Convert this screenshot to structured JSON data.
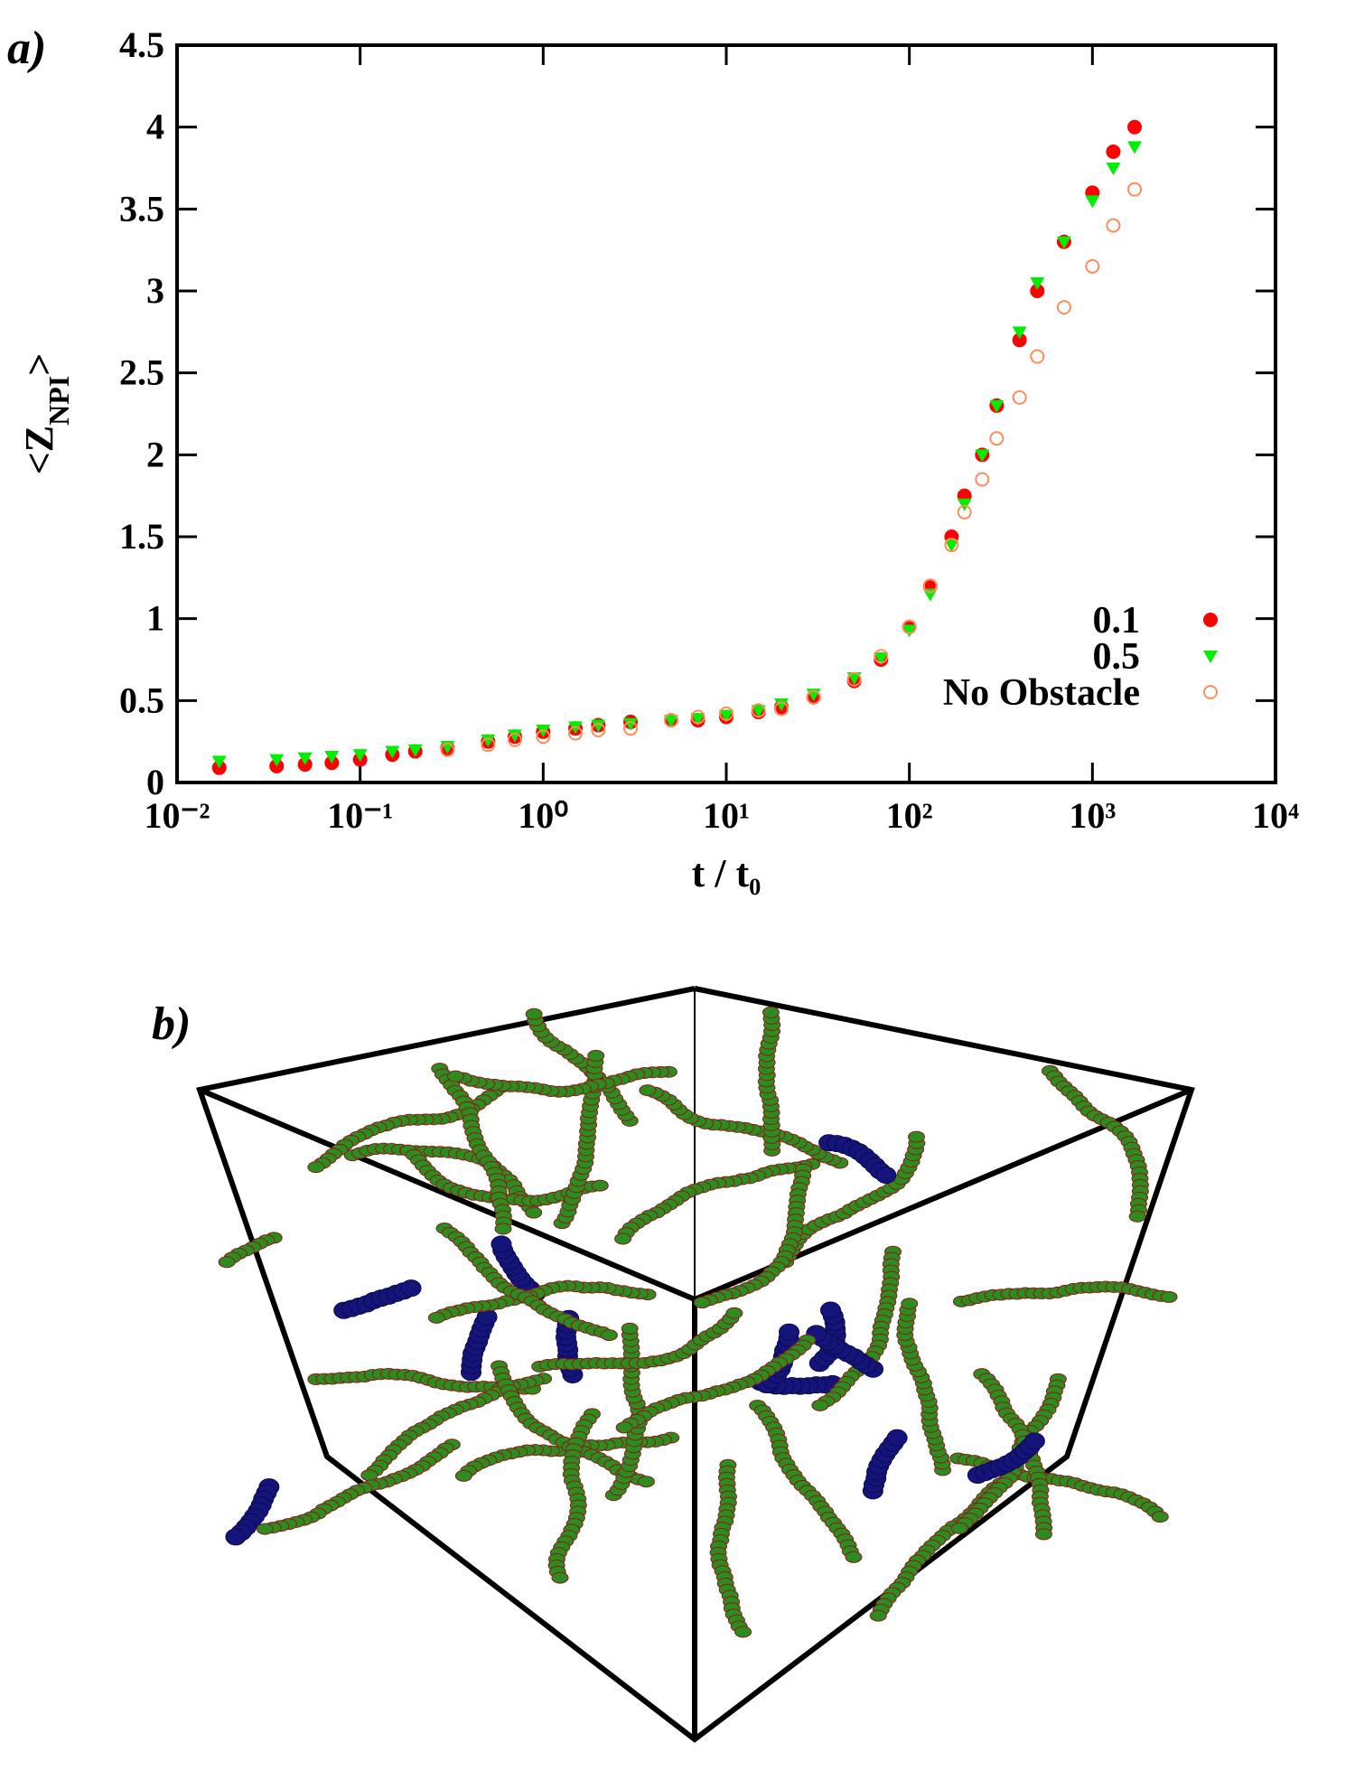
{
  "chart_data": {
    "type": "scatter",
    "panel_label": "a)",
    "xlabel": "t / t₀",
    "ylabel": [
      "<Z",
      "NPI",
      ">"
    ],
    "xscale": "log",
    "xlim": [
      0.01,
      10000
    ],
    "xticks": [
      {
        "value": 0.01,
        "label": "10⁻²"
      },
      {
        "value": 0.1,
        "label": "10⁻¹"
      },
      {
        "value": 1,
        "label": "10⁰"
      },
      {
        "value": 10,
        "label": "10¹"
      },
      {
        "value": 100,
        "label": "10²"
      },
      {
        "value": 1000,
        "label": "10³"
      },
      {
        "value": 10000,
        "label": "10⁴"
      }
    ],
    "ylim": [
      0,
      4.5
    ],
    "yticks": [
      0,
      0.5,
      1,
      1.5,
      2,
      2.5,
      3,
      3.5,
      4,
      4.5
    ],
    "legend": "lower right",
    "series": [
      {
        "name": "0.1",
        "color": "#ff0000",
        "marker": "circle",
        "x": [
          0.017,
          0.035,
          0.05,
          0.07,
          0.1,
          0.15,
          0.2,
          0.3,
          0.5,
          0.7,
          1,
          1.5,
          2,
          3,
          5,
          7,
          10,
          15,
          20,
          30,
          50,
          70,
          100,
          130,
          170,
          200,
          250,
          300,
          400,
          500,
          700,
          1000,
          1300,
          1700
        ],
        "values": [
          0.09,
          0.1,
          0.11,
          0.12,
          0.14,
          0.17,
          0.19,
          0.21,
          0.25,
          0.28,
          0.31,
          0.33,
          0.35,
          0.37,
          0.38,
          0.38,
          0.4,
          0.43,
          0.46,
          0.52,
          0.62,
          0.75,
          0.95,
          1.2,
          1.5,
          1.75,
          2.0,
          2.3,
          2.7,
          3.0,
          3.3,
          3.6,
          3.85,
          4.0
        ]
      },
      {
        "name": "0.5",
        "color": "#00ee00",
        "marker": "triangle",
        "x": [
          0.017,
          0.035,
          0.05,
          0.07,
          0.1,
          0.15,
          0.2,
          0.3,
          0.5,
          0.7,
          1,
          1.5,
          2,
          3,
          5,
          7,
          10,
          15,
          20,
          30,
          50,
          70,
          100,
          130,
          170,
          200,
          250,
          300,
          400,
          500,
          700,
          1000,
          1300,
          1700
        ],
        "values": [
          0.13,
          0.14,
          0.15,
          0.16,
          0.17,
          0.19,
          0.2,
          0.22,
          0.26,
          0.29,
          0.32,
          0.34,
          0.35,
          0.36,
          0.38,
          0.39,
          0.41,
          0.44,
          0.48,
          0.54,
          0.64,
          0.76,
          0.93,
          1.15,
          1.45,
          1.7,
          2.0,
          2.3,
          2.75,
          3.05,
          3.3,
          3.55,
          3.75,
          3.88
        ]
      },
      {
        "name": "No Obstacle",
        "color": "#ff8c5a",
        "marker": "open-circle",
        "x": [
          0.3,
          0.5,
          0.7,
          1,
          1.5,
          2,
          3,
          5,
          7,
          10,
          15,
          20,
          30,
          50,
          70,
          100,
          130,
          170,
          200,
          250,
          300,
          400,
          500,
          700,
          1000,
          1300,
          1700
        ],
        "values": [
          0.2,
          0.23,
          0.26,
          0.28,
          0.3,
          0.32,
          0.33,
          0.38,
          0.4,
          0.42,
          0.44,
          0.45,
          0.52,
          0.63,
          0.77,
          0.95,
          1.2,
          1.45,
          1.65,
          1.85,
          2.1,
          2.35,
          2.6,
          2.9,
          3.15,
          3.4,
          3.62
        ]
      }
    ]
  },
  "figure_b": {
    "panel_label": "b)"
  }
}
